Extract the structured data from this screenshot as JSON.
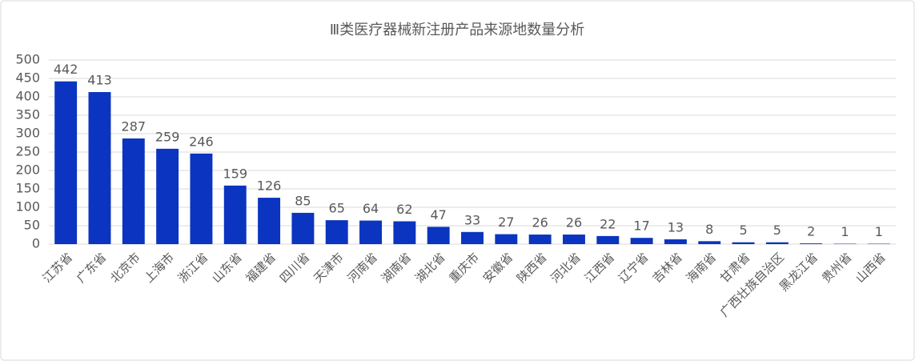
{
  "chart_data": {
    "type": "bar",
    "title": "Ⅲ类医疗器械新注册产品来源地数量分析",
    "categories": [
      "江苏省",
      "广东省",
      "北京市",
      "上海市",
      "浙江省",
      "山东省",
      "福建省",
      "四川省",
      "天津市",
      "河南省",
      "湖南省",
      "湖北省",
      "重庆市",
      "安徽省",
      "陕西省",
      "河北省",
      "江西省",
      "辽宁省",
      "吉林省",
      "海南省",
      "甘肃省",
      "广西壮族自治区",
      "黑龙江省",
      "贵州省",
      "山西省"
    ],
    "values": [
      442,
      413,
      287,
      259,
      246,
      159,
      126,
      85,
      65,
      64,
      62,
      47,
      33,
      27,
      26,
      26,
      22,
      17,
      13,
      8,
      5,
      5,
      2,
      1,
      1
    ],
    "color": "#0b34c0",
    "ylim": [
      0,
      500
    ],
    "yticks": [
      0,
      50,
      100,
      150,
      200,
      250,
      300,
      350,
      400,
      450,
      500
    ],
    "grid": true
  }
}
